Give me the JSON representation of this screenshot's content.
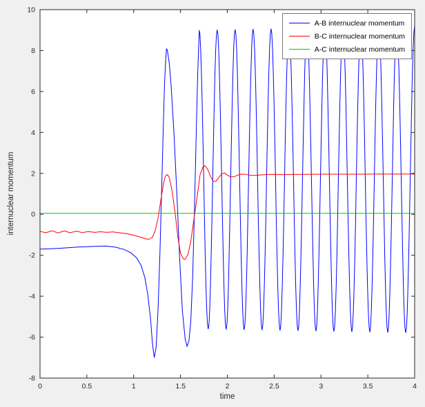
{
  "figure": {
    "background": "#f0f0f0",
    "plot_background": "#ffffff",
    "axis_color": "#262626"
  },
  "chart_data": {
    "type": "line",
    "title": "",
    "xlabel": "time",
    "ylabel": "internuclear momentum",
    "xlim": [
      0,
      4
    ],
    "ylim": [
      -8,
      10
    ],
    "grid": false,
    "legend_position": "top-right",
    "xticks": [
      0,
      0.5,
      1,
      1.5,
      2,
      2.5,
      3,
      3.5,
      4
    ],
    "xtick_labels": [
      "0",
      "0.5",
      "1",
      "1.5",
      "2",
      "2.5",
      "3",
      "3.5",
      "4"
    ],
    "yticks": [
      -8,
      -6,
      -4,
      -2,
      0,
      2,
      4,
      6,
      8,
      10
    ],
    "ytick_labels": [
      "-8",
      "-6",
      "-4",
      "-2",
      "0",
      "2",
      "4",
      "6",
      "8",
      "10"
    ],
    "series": [
      {
        "name": "A-B internuclear momentum",
        "color": "#0000ff",
        "segments": [
          {
            "type": "points",
            "data": [
              [
                0,
                -1.7
              ],
              [
                0.1,
                -1.68
              ],
              [
                0.2,
                -1.66
              ],
              [
                0.3,
                -1.63
              ],
              [
                0.4,
                -1.6
              ],
              [
                0.5,
                -1.58
              ],
              [
                0.6,
                -1.56
              ],
              [
                0.7,
                -1.55
              ],
              [
                0.8,
                -1.6
              ],
              [
                0.9,
                -1.72
              ],
              [
                0.97,
                -1.88
              ],
              [
                1.03,
                -2.12
              ],
              [
                1.08,
                -2.5
              ],
              [
                1.12,
                -3.1
              ],
              [
                1.15,
                -3.9
              ],
              [
                1.18,
                -5.1
              ],
              [
                1.2,
                -6.3
              ],
              [
                1.22,
                -7.0
              ],
              [
                1.24,
                -6.5
              ],
              [
                1.26,
                -4.7
              ],
              [
                1.28,
                -1.9
              ],
              [
                1.3,
                1.5
              ],
              [
                1.32,
                4.9
              ],
              [
                1.33,
                6.4
              ],
              [
                1.34,
                7.4
              ],
              [
                1.35,
                8.1
              ],
              [
                1.36,
                8.0
              ],
              [
                1.38,
                7.4
              ],
              [
                1.4,
                6.3
              ],
              [
                1.43,
                4.0
              ],
              [
                1.46,
                1.1
              ],
              [
                1.49,
                -2.1
              ],
              [
                1.52,
                -4.7
              ],
              [
                1.55,
                -6.1
              ],
              [
                1.57,
                -6.45
              ],
              [
                1.59,
                -6.2
              ],
              [
                1.61,
                -5.2
              ],
              [
                1.63,
                -3.0
              ],
              [
                1.65,
                0.4
              ],
              [
                1.67,
                4.4
              ],
              [
                1.685,
                7.0
              ],
              [
                1.7,
                8.95
              ]
            ]
          },
          {
            "type": "sine",
            "t0": 1.7,
            "t1": 4.0,
            "center": 1.7,
            "period": 0.1917,
            "amp_start": 7.3,
            "amp_end": 7.5
          }
        ]
      },
      {
        "name": "B-C internuclear momentum",
        "color": "#ff0000",
        "segments": [
          {
            "type": "points",
            "data": [
              [
                0,
                -0.83
              ],
              [
                0.06,
                -0.9
              ],
              [
                0.13,
                -0.8
              ],
              [
                0.19,
                -0.91
              ],
              [
                0.26,
                -0.81
              ],
              [
                0.32,
                -0.9
              ],
              [
                0.39,
                -0.82
              ],
              [
                0.45,
                -0.89
              ],
              [
                0.52,
                -0.84
              ],
              [
                0.58,
                -0.88
              ],
              [
                0.65,
                -0.85
              ],
              [
                0.71,
                -0.88
              ],
              [
                0.78,
                -0.86
              ],
              [
                0.85,
                -0.9
              ],
              [
                0.92,
                -0.94
              ],
              [
                1.0,
                -1.02
              ],
              [
                1.06,
                -1.1
              ],
              [
                1.12,
                -1.19
              ],
              [
                1.16,
                -1.22
              ],
              [
                1.2,
                -1.12
              ],
              [
                1.23,
                -0.8
              ],
              [
                1.26,
                -0.2
              ],
              [
                1.29,
                0.7
              ],
              [
                1.32,
                1.55
              ],
              [
                1.34,
                1.88
              ],
              [
                1.36,
                1.95
              ],
              [
                1.38,
                1.8
              ],
              [
                1.41,
                1.15
              ],
              [
                1.44,
                0.15
              ],
              [
                1.47,
                -1.05
              ],
              [
                1.5,
                -1.9
              ],
              [
                1.53,
                -2.18
              ],
              [
                1.55,
                -2.2
              ],
              [
                1.58,
                -1.95
              ],
              [
                1.61,
                -1.3
              ],
              [
                1.64,
                -0.35
              ],
              [
                1.68,
                0.95
              ],
              [
                1.71,
                1.95
              ],
              [
                1.74,
                2.32
              ],
              [
                1.76,
                2.38
              ],
              [
                1.79,
                2.2
              ],
              [
                1.82,
                1.85
              ],
              [
                1.85,
                1.62
              ],
              [
                1.88,
                1.62
              ],
              [
                1.91,
                1.8
              ],
              [
                1.94,
                1.98
              ],
              [
                1.97,
                2.02
              ],
              [
                2.0,
                1.92
              ],
              [
                2.04,
                1.82
              ],
              [
                2.08,
                1.85
              ],
              [
                2.12,
                1.93
              ],
              [
                2.16,
                1.97
              ],
              [
                2.2,
                1.95
              ],
              [
                2.25,
                1.9
              ],
              [
                2.3,
                1.91
              ],
              [
                2.4,
                1.94
              ],
              [
                2.5,
                1.95
              ],
              [
                2.6,
                1.94
              ],
              [
                2.7,
                1.95
              ],
              [
                2.8,
                1.95
              ],
              [
                3.0,
                1.96
              ],
              [
                3.2,
                1.96
              ],
              [
                3.4,
                1.96
              ],
              [
                3.6,
                1.97
              ],
              [
                3.8,
                1.97
              ],
              [
                4.0,
                1.97
              ]
            ]
          }
        ]
      },
      {
        "name": "A-C internuclear momentum",
        "color": "#00cc00",
        "segments": [
          {
            "type": "points",
            "data": [
              [
                0,
                0.05
              ],
              [
                4.0,
                0.05
              ]
            ]
          }
        ]
      }
    ]
  }
}
